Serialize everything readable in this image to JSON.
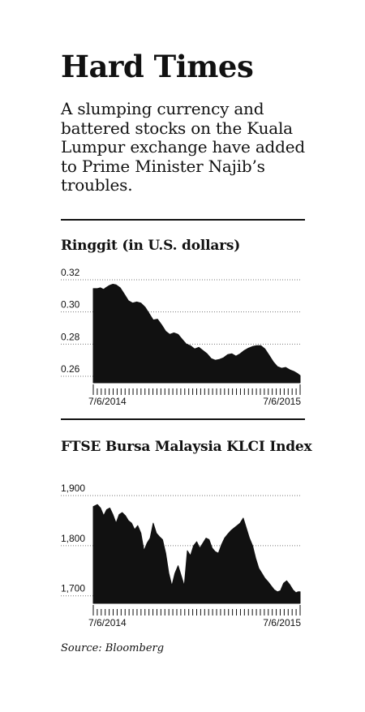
{
  "header": {
    "title": "Hard Times",
    "subtitle": "A slumping currency and battered stocks on the Kuala Lumpur exchange have added to Prime Minister Najib’s troubles."
  },
  "colors": {
    "ink": "#111111",
    "grid": "#777777"
  },
  "chart_data": [
    {
      "type": "area",
      "title": "Ringgit (in U.S. dollars)",
      "ylim": [
        0.256,
        0.324
      ],
      "yticks": [
        0.32,
        0.3,
        0.28,
        0.26
      ],
      "ytick_labels": [
        "0.32",
        "0.30",
        "0.28",
        "0.26"
      ],
      "x_labels": [
        "7/6/2014",
        "7/6/2015"
      ],
      "x_range": [
        0,
        1
      ],
      "grid": true,
      "series": [
        {
          "x": [
            0,
            0.02,
            0.035,
            0.05,
            0.06,
            0.075,
            0.085,
            0.095,
            0.11,
            0.13,
            0.15,
            0.17,
            0.19,
            0.21,
            0.23,
            0.25,
            0.27,
            0.29,
            0.31,
            0.33,
            0.35,
            0.37,
            0.39,
            0.41,
            0.43,
            0.45,
            0.47,
            0.49,
            0.51,
            0.53,
            0.55,
            0.57,
            0.59,
            0.61,
            0.63,
            0.65,
            0.67,
            0.69,
            0.71,
            0.73,
            0.75,
            0.77,
            0.79,
            0.81,
            0.83,
            0.85,
            0.87,
            0.89,
            0.91,
            0.93,
            0.95,
            0.97,
            0.99,
            1.0
          ],
          "values": [
            0.3145,
            0.3145,
            0.315,
            0.314,
            0.315,
            0.3162,
            0.3168,
            0.3172,
            0.3168,
            0.315,
            0.311,
            0.307,
            0.3055,
            0.3062,
            0.3055,
            0.303,
            0.299,
            0.295,
            0.2955,
            0.292,
            0.288,
            0.286,
            0.287,
            0.286,
            0.283,
            0.28,
            0.279,
            0.277,
            0.278,
            0.276,
            0.274,
            0.271,
            0.27,
            0.2705,
            0.2715,
            0.2735,
            0.274,
            0.2725,
            0.274,
            0.276,
            0.2775,
            0.2785,
            0.279,
            0.279,
            0.277,
            0.273,
            0.269,
            0.266,
            0.265,
            0.2655,
            0.264,
            0.263,
            0.2615,
            0.2605
          ]
        }
      ]
    },
    {
      "type": "area",
      "title": "FTSE Bursa Malaysia KLCI Index",
      "ylim": [
        1685,
        1905
      ],
      "yticks": [
        1900,
        1800,
        1700
      ],
      "ytick_labels": [
        "1,900",
        "1,800",
        "1,700"
      ],
      "x_labels": [
        "7/6/2014",
        "7/6/2015"
      ],
      "x_range": [
        0,
        1
      ],
      "grid": true,
      "series": [
        {
          "x": [
            0,
            0.02,
            0.035,
            0.05,
            0.065,
            0.08,
            0.095,
            0.11,
            0.125,
            0.14,
            0.155,
            0.17,
            0.185,
            0.2,
            0.215,
            0.23,
            0.245,
            0.26,
            0.275,
            0.29,
            0.305,
            0.32,
            0.335,
            0.35,
            0.365,
            0.38,
            0.395,
            0.41,
            0.425,
            0.44,
            0.455,
            0.47,
            0.485,
            0.5,
            0.515,
            0.53,
            0.545,
            0.56,
            0.575,
            0.59,
            0.605,
            0.62,
            0.635,
            0.65,
            0.665,
            0.68,
            0.695,
            0.71,
            0.725,
            0.74,
            0.755,
            0.77,
            0.785,
            0.8,
            0.815,
            0.83,
            0.845,
            0.86,
            0.875,
            0.89,
            0.905,
            0.92,
            0.935,
            0.95,
            0.965,
            0.98,
            0.99,
            1.0
          ],
          "values": [
            1878,
            1882,
            1875,
            1860,
            1872,
            1875,
            1862,
            1845,
            1862,
            1866,
            1860,
            1850,
            1845,
            1832,
            1840,
            1825,
            1790,
            1805,
            1815,
            1845,
            1825,
            1818,
            1812,
            1785,
            1745,
            1720,
            1745,
            1760,
            1740,
            1720,
            1790,
            1780,
            1800,
            1808,
            1795,
            1805,
            1815,
            1812,
            1795,
            1788,
            1785,
            1802,
            1815,
            1823,
            1830,
            1835,
            1840,
            1845,
            1855,
            1835,
            1815,
            1800,
            1775,
            1755,
            1745,
            1735,
            1728,
            1720,
            1712,
            1708,
            1710,
            1725,
            1730,
            1722,
            1712,
            1706,
            1708,
            1708
          ]
        }
      ]
    }
  ],
  "source": "Source: Bloomberg"
}
